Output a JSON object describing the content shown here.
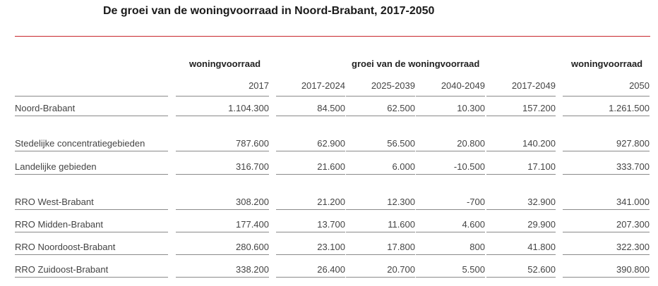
{
  "title": "De groei van de woningvoorraad in Noord-Brabant, 2017-2050",
  "header": {
    "col_group1": "woningvoorraad",
    "col_group2": "groei van de woningvoorraad",
    "col_group3": "woningvoorraad"
  },
  "columns": [
    "2017",
    "2017-2024",
    "2025-2039",
    "2040-2049",
    "2017-2049",
    "2050"
  ],
  "rows": [
    {
      "name": "Noord-Brabant",
      "values": [
        "1.104.300",
        "84.500",
        "62.500",
        "10.300",
        "157.200",
        "1.261.500"
      ]
    },
    {
      "name": "Stedelijke concentratiegebieden",
      "values": [
        "787.600",
        "62.900",
        "56.500",
        "20.800",
        "140.200",
        "927.800"
      ]
    },
    {
      "name": "Landelijke gebieden",
      "values": [
        "316.700",
        "21.600",
        "6.000",
        "-10.500",
        "17.100",
        "333.700"
      ]
    },
    {
      "name": "RRO West-Brabant",
      "values": [
        "308.200",
        "21.200",
        "12.300",
        "-700",
        "32.900",
        "341.000"
      ]
    },
    {
      "name": "RRO Midden-Brabant",
      "values": [
        "177.400",
        "13.700",
        "11.600",
        "4.600",
        "29.900",
        "207.300"
      ]
    },
    {
      "name": "RRO Noordoost-Brabant",
      "values": [
        "280.600",
        "23.100",
        "17.800",
        "800",
        "41.800",
        "322.300"
      ]
    },
    {
      "name": "RRO Zuidoost-Brabant",
      "values": [
        "338.200",
        "26.400",
        "20.700",
        "5.500",
        "52.600",
        "390.800"
      ]
    }
  ],
  "colors": {
    "rule_red": "#c8262c",
    "text": "#444444"
  }
}
